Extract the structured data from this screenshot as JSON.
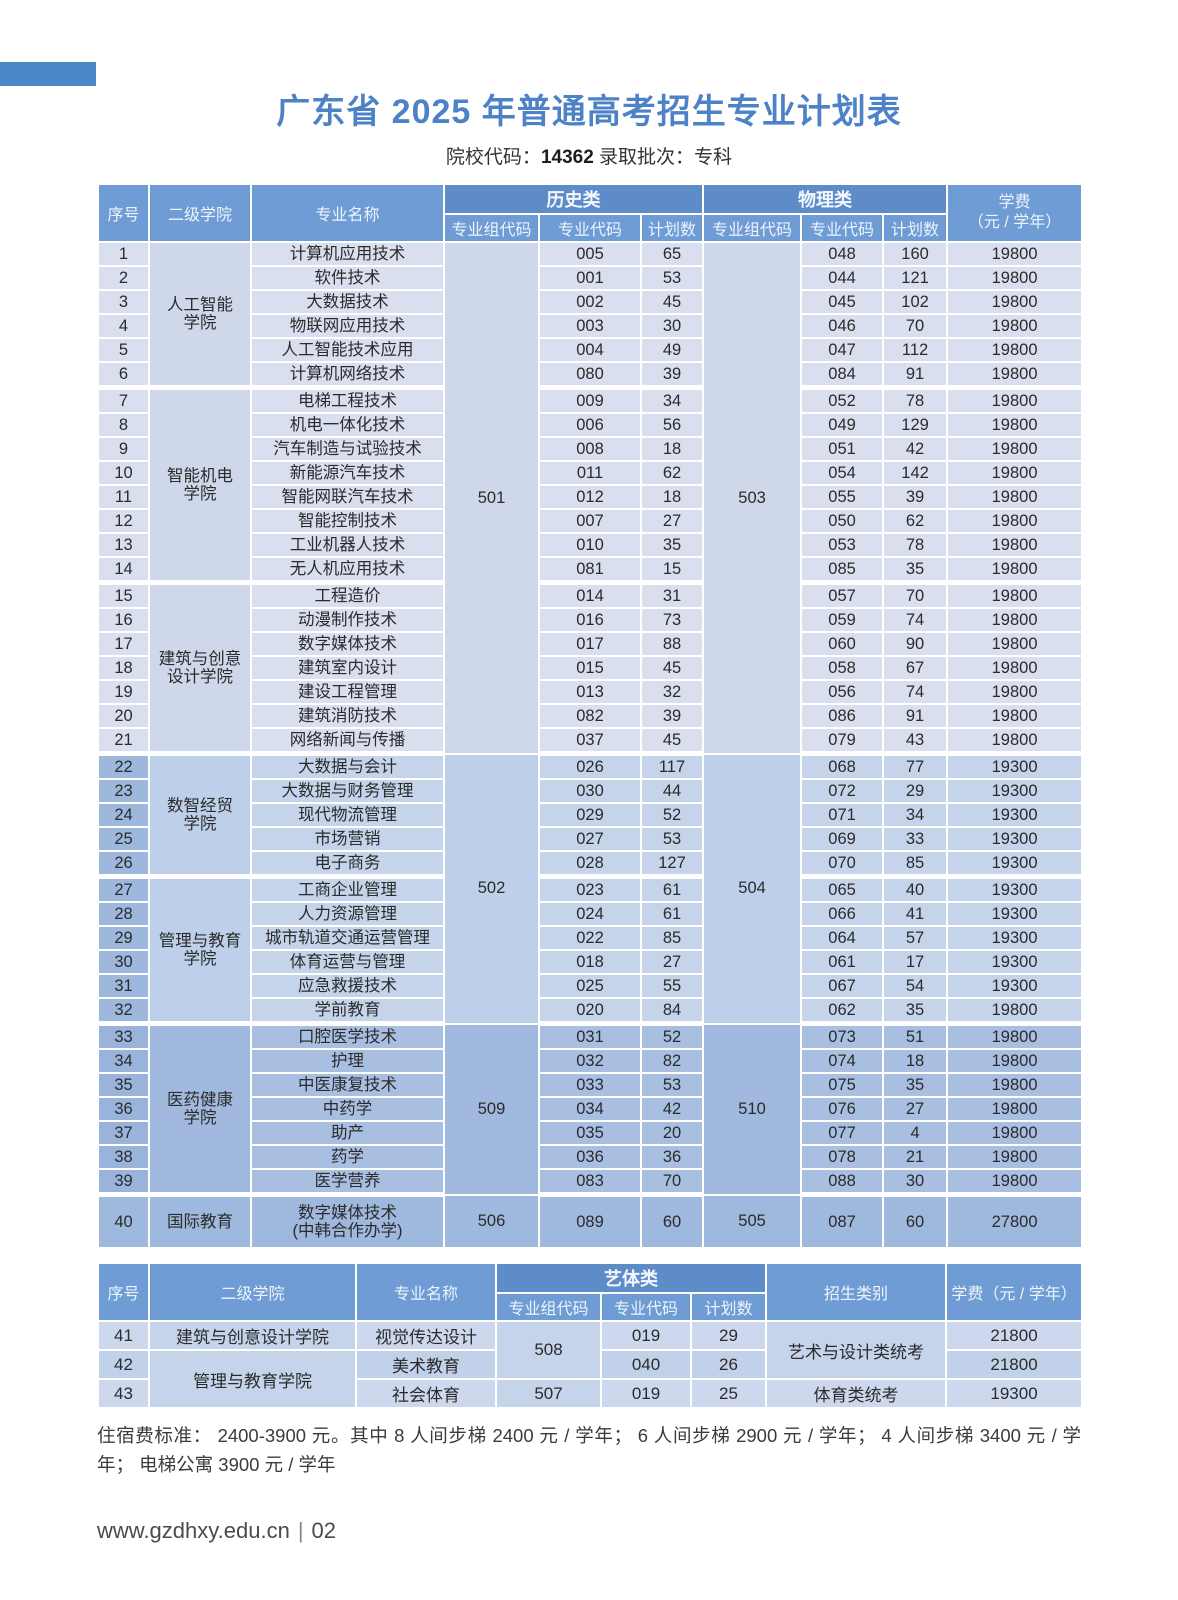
{
  "page": {
    "title": "广东省 2025 年普通高考招生专业计划表",
    "subtitle_prefix": "院校代码：",
    "school_code": "14362",
    "subtitle_mid": "  录取批次：",
    "batch": "专科",
    "note": "住宿费标准： 2400-3900 元。其中 8 人间步梯 2400 元 / 学年； 6 人间步梯 2900 元 / 学年； 4 人间步梯 3400 元 / 学年； 电梯公寓 3900 元 / 学年",
    "website": "www.gzdhxy.edu.cn",
    "page_number": "02"
  },
  "colors": {
    "title_blue": "#4d82c6",
    "corner_bar": "#4a86c8",
    "header_blue": "#6f9cd4",
    "header_band_blue": "#5d8cc9",
    "light_cell": "#d9dfef",
    "light_merged": "#cfd7ea",
    "mid_cell": "#c6d4eb",
    "mid_merged": "#bdcfe9",
    "mid_num": "#9db7dd",
    "dark_cell": "#a8bfe2",
    "dark_merged": "#a1b9de",
    "dark_num": "#9ab3db",
    "row40": "#9fb8dd"
  },
  "main_table": {
    "headers": {
      "no": "序号",
      "college": "二级学院",
      "major": "专业名称",
      "history": "历史类",
      "physics": "物理类",
      "group_code": "专业组代码",
      "major_code": "专业代码",
      "plan": "计划数",
      "fee": "学费\n（元 / 学年）"
    },
    "college_spans": [
      {
        "label": "人工智能\n学院",
        "from": 1,
        "to": 6
      },
      {
        "label": "智能机电\n学院",
        "from": 7,
        "to": 14
      },
      {
        "label": "建筑与创意\n设计学院",
        "from": 15,
        "to": 21
      },
      {
        "label": "数智经贸\n学院",
        "from": 22,
        "to": 26
      },
      {
        "label": "管理与教育\n学院",
        "from": 27,
        "to": 32
      },
      {
        "label": "医药健康\n学院",
        "from": 33,
        "to": 39
      },
      {
        "label": "国际教育",
        "from": 40,
        "to": 40
      }
    ],
    "hist_groups": [
      {
        "code": "501",
        "from": 1,
        "to": 21
      },
      {
        "code": "502",
        "from": 22,
        "to": 32
      },
      {
        "code": "509",
        "from": 33,
        "to": 39
      },
      {
        "code": "506",
        "from": 40,
        "to": 40
      }
    ],
    "phys_groups": [
      {
        "code": "503",
        "from": 1,
        "to": 21
      },
      {
        "code": "504",
        "from": 22,
        "to": 32
      },
      {
        "code": "510",
        "from": 33,
        "to": 39
      },
      {
        "code": "505",
        "from": 40,
        "to": 40
      }
    ],
    "tones": [
      {
        "from": 1,
        "to": 21,
        "cell": "#d9dfef",
        "merged": "#cfd7ea",
        "num": "#d9dfef"
      },
      {
        "from": 22,
        "to": 32,
        "cell": "#c6d4eb",
        "merged": "#bdcfe9",
        "num": "#9db7dd"
      },
      {
        "from": 33,
        "to": 39,
        "cell": "#a8bfe2",
        "merged": "#a1b9de",
        "num": "#9ab3db"
      },
      {
        "from": 40,
        "to": 40,
        "cell": "#9fb8dd",
        "merged": "#9fb8dd",
        "num": "#9fb8dd"
      }
    ],
    "section_starts": [
      7,
      15,
      22,
      27,
      33,
      40
    ],
    "rows": [
      {
        "no": "1",
        "major": "计算机应用技术",
        "hist_code": "005",
        "hist_plan": "65",
        "phys_code": "048",
        "phys_plan": "160",
        "fee": "19800"
      },
      {
        "no": "2",
        "major": "软件技术",
        "hist_code": "001",
        "hist_plan": "53",
        "phys_code": "044",
        "phys_plan": "121",
        "fee": "19800"
      },
      {
        "no": "3",
        "major": "大数据技术",
        "hist_code": "002",
        "hist_plan": "45",
        "phys_code": "045",
        "phys_plan": "102",
        "fee": "19800"
      },
      {
        "no": "4",
        "major": "物联网应用技术",
        "hist_code": "003",
        "hist_plan": "30",
        "phys_code": "046",
        "phys_plan": "70",
        "fee": "19800"
      },
      {
        "no": "5",
        "major": "人工智能技术应用",
        "hist_code": "004",
        "hist_plan": "49",
        "phys_code": "047",
        "phys_plan": "112",
        "fee": "19800"
      },
      {
        "no": "6",
        "major": "计算机网络技术",
        "hist_code": "080",
        "hist_plan": "39",
        "phys_code": "084",
        "phys_plan": "91",
        "fee": "19800"
      },
      {
        "no": "7",
        "major": "电梯工程技术",
        "hist_code": "009",
        "hist_plan": "34",
        "phys_code": "052",
        "phys_plan": "78",
        "fee": "19800"
      },
      {
        "no": "8",
        "major": "机电一体化技术",
        "hist_code": "006",
        "hist_plan": "56",
        "phys_code": "049",
        "phys_plan": "129",
        "fee": "19800"
      },
      {
        "no": "9",
        "major": "汽车制造与试验技术",
        "hist_code": "008",
        "hist_plan": "18",
        "phys_code": "051",
        "phys_plan": "42",
        "fee": "19800"
      },
      {
        "no": "10",
        "major": "新能源汽车技术",
        "hist_code": "011",
        "hist_plan": "62",
        "phys_code": "054",
        "phys_plan": "142",
        "fee": "19800"
      },
      {
        "no": "11",
        "major": "智能网联汽车技术",
        "hist_code": "012",
        "hist_plan": "18",
        "phys_code": "055",
        "phys_plan": "39",
        "fee": "19800"
      },
      {
        "no": "12",
        "major": "智能控制技术",
        "hist_code": "007",
        "hist_plan": "27",
        "phys_code": "050",
        "phys_plan": "62",
        "fee": "19800"
      },
      {
        "no": "13",
        "major": "工业机器人技术",
        "hist_code": "010",
        "hist_plan": "35",
        "phys_code": "053",
        "phys_plan": "78",
        "fee": "19800"
      },
      {
        "no": "14",
        "major": "无人机应用技术",
        "hist_code": "081",
        "hist_plan": "15",
        "phys_code": "085",
        "phys_plan": "35",
        "fee": "19800"
      },
      {
        "no": "15",
        "major": "工程造价",
        "hist_code": "014",
        "hist_plan": "31",
        "phys_code": "057",
        "phys_plan": "70",
        "fee": "19800"
      },
      {
        "no": "16",
        "major": "动漫制作技术",
        "hist_code": "016",
        "hist_plan": "73",
        "phys_code": "059",
        "phys_plan": "74",
        "fee": "19800"
      },
      {
        "no": "17",
        "major": "数字媒体技术",
        "hist_code": "017",
        "hist_plan": "88",
        "phys_code": "060",
        "phys_plan": "90",
        "fee": "19800"
      },
      {
        "no": "18",
        "major": "建筑室内设计",
        "hist_code": "015",
        "hist_plan": "45",
        "phys_code": "058",
        "phys_plan": "67",
        "fee": "19800"
      },
      {
        "no": "19",
        "major": "建设工程管理",
        "hist_code": "013",
        "hist_plan": "32",
        "phys_code": "056",
        "phys_plan": "74",
        "fee": "19800"
      },
      {
        "no": "20",
        "major": "建筑消防技术",
        "hist_code": "082",
        "hist_plan": "39",
        "phys_code": "086",
        "phys_plan": "91",
        "fee": "19800"
      },
      {
        "no": "21",
        "major": "网络新闻与传播",
        "hist_code": "037",
        "hist_plan": "45",
        "phys_code": "079",
        "phys_plan": "43",
        "fee": "19800"
      },
      {
        "no": "22",
        "major": "大数据与会计",
        "hist_code": "026",
        "hist_plan": "117",
        "phys_code": "068",
        "phys_plan": "77",
        "fee": "19300"
      },
      {
        "no": "23",
        "major": "大数据与财务管理",
        "hist_code": "030",
        "hist_plan": "44",
        "phys_code": "072",
        "phys_plan": "29",
        "fee": "19300"
      },
      {
        "no": "24",
        "major": "现代物流管理",
        "hist_code": "029",
        "hist_plan": "52",
        "phys_code": "071",
        "phys_plan": "34",
        "fee": "19300"
      },
      {
        "no": "25",
        "major": "市场营销",
        "hist_code": "027",
        "hist_plan": "53",
        "phys_code": "069",
        "phys_plan": "33",
        "fee": "19300"
      },
      {
        "no": "26",
        "major": "电子商务",
        "hist_code": "028",
        "hist_plan": "127",
        "phys_code": "070",
        "phys_plan": "85",
        "fee": "19300"
      },
      {
        "no": "27",
        "major": "工商企业管理",
        "hist_code": "023",
        "hist_plan": "61",
        "phys_code": "065",
        "phys_plan": "40",
        "fee": "19300"
      },
      {
        "no": "28",
        "major": "人力资源管理",
        "hist_code": "024",
        "hist_plan": "61",
        "phys_code": "066",
        "phys_plan": "41",
        "fee": "19300"
      },
      {
        "no": "29",
        "major": "城市轨道交通运营管理",
        "hist_code": "022",
        "hist_plan": "85",
        "phys_code": "064",
        "phys_plan": "57",
        "fee": "19300"
      },
      {
        "no": "30",
        "major": "体育运营与管理",
        "hist_code": "018",
        "hist_plan": "27",
        "phys_code": "061",
        "phys_plan": "17",
        "fee": "19300"
      },
      {
        "no": "31",
        "major": "应急救援技术",
        "hist_code": "025",
        "hist_plan": "55",
        "phys_code": "067",
        "phys_plan": "54",
        "fee": "19300"
      },
      {
        "no": "32",
        "major": "学前教育",
        "hist_code": "020",
        "hist_plan": "84",
        "phys_code": "062",
        "phys_plan": "35",
        "fee": "19800"
      },
      {
        "no": "33",
        "major": "口腔医学技术",
        "hist_code": "031",
        "hist_plan": "52",
        "phys_code": "073",
        "phys_plan": "51",
        "fee": "19800"
      },
      {
        "no": "34",
        "major": "护理",
        "hist_code": "032",
        "hist_plan": "82",
        "phys_code": "074",
        "phys_plan": "18",
        "fee": "19800"
      },
      {
        "no": "35",
        "major": "中医康复技术",
        "hist_code": "033",
        "hist_plan": "53",
        "phys_code": "075",
        "phys_plan": "35",
        "fee": "19800"
      },
      {
        "no": "36",
        "major": "中药学",
        "hist_code": "034",
        "hist_plan": "42",
        "phys_code": "076",
        "phys_plan": "27",
        "fee": "19800"
      },
      {
        "no": "37",
        "major": "助产",
        "hist_code": "035",
        "hist_plan": "20",
        "phys_code": "077",
        "phys_plan": "4",
        "fee": "19800"
      },
      {
        "no": "38",
        "major": "药学",
        "hist_code": "036",
        "hist_plan": "36",
        "phys_code": "078",
        "phys_plan": "21",
        "fee": "19800"
      },
      {
        "no": "39",
        "major": "医学营养",
        "hist_code": "083",
        "hist_plan": "70",
        "phys_code": "088",
        "phys_plan": "30",
        "fee": "19800"
      },
      {
        "no": "40",
        "major": "数字媒体技术\n(中韩合作办学)",
        "hist_code": "089",
        "hist_plan": "60",
        "phys_code": "087",
        "phys_plan": "60",
        "fee": "27800"
      }
    ]
  },
  "art_table": {
    "headers": {
      "no": "序号",
      "college": "二级学院",
      "major": "专业名称",
      "arts": "艺体类",
      "group_code": "专业组代码",
      "major_code": "专业代码",
      "plan": "计划数",
      "category": "招生类别",
      "fee": "学费（元 / 学年）"
    },
    "rows": [
      {
        "no": "41",
        "major": "视觉传达设计",
        "major_code": "019",
        "plan": "29",
        "fee": "21800"
      },
      {
        "no": "42",
        "major": "美术教育",
        "major_code": "040",
        "plan": "26",
        "fee": "21800"
      },
      {
        "no": "43",
        "major": "社会体育",
        "major_code": "019",
        "plan": "25",
        "fee": "19300"
      }
    ],
    "college_spans": [
      {
        "label": "建筑与创意设计学院",
        "from": 41,
        "to": 41
      },
      {
        "label": "管理与教育学院",
        "from": 42,
        "to": 43
      }
    ],
    "group_spans": [
      {
        "code": "508",
        "from": 41,
        "to": 42
      },
      {
        "code": "507",
        "from": 43,
        "to": 43
      }
    ],
    "category_spans": [
      {
        "label": "艺术与设计类统考",
        "from": 41,
        "to": 42
      },
      {
        "label": "体育类统考",
        "from": 43,
        "to": 43
      }
    ],
    "row_tones": {
      "41": "#cdd8ee",
      "42": "#c1d1e9",
      "43": "#cdd8ee",
      "merged": "#c6d4eb"
    }
  }
}
